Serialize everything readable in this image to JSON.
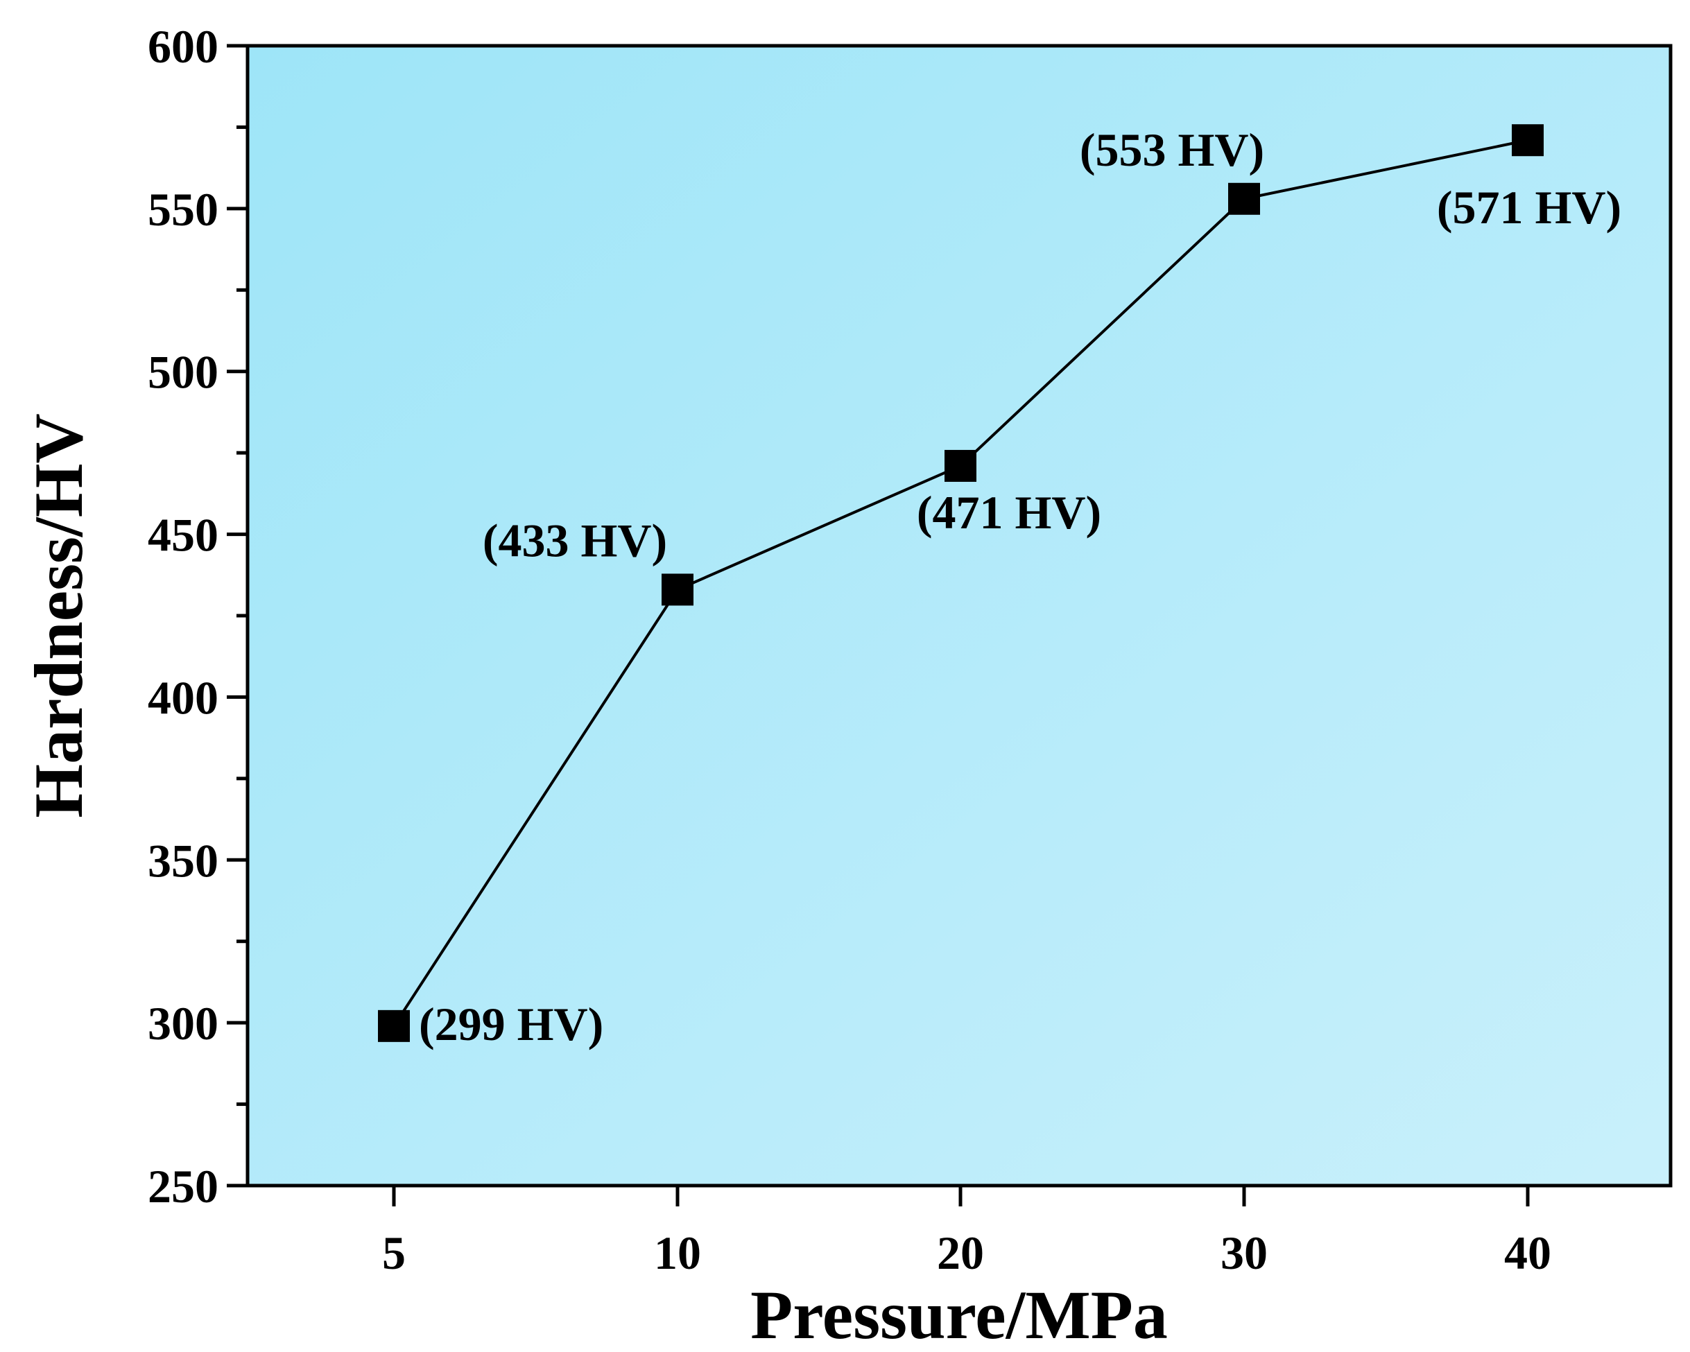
{
  "chart_data": {
    "type": "line",
    "title": "",
    "xlabel": "Pressure/MPa",
    "ylabel": "Hardness/HV",
    "categories": [
      "5",
      "10",
      "20",
      "30",
      "40"
    ],
    "series": [
      {
        "name": "Hardness",
        "values": [
          299,
          433,
          471,
          553,
          571
        ],
        "marker": "square",
        "color": "#000000"
      }
    ],
    "point_labels": [
      "(299 HV)",
      "(433 HV)",
      "(471 HV)",
      "(553 HV)",
      "(571 HV)"
    ],
    "ylim": [
      250,
      600
    ],
    "yticks": [
      "250",
      "300",
      "350",
      "400",
      "450",
      "500",
      "550",
      "600"
    ],
    "grid": false,
    "legend": "none",
    "colors": {
      "plot_bg_start": "#9ee5f8",
      "plot_bg_end": "#c9f0fb",
      "line": "#000000"
    }
  }
}
